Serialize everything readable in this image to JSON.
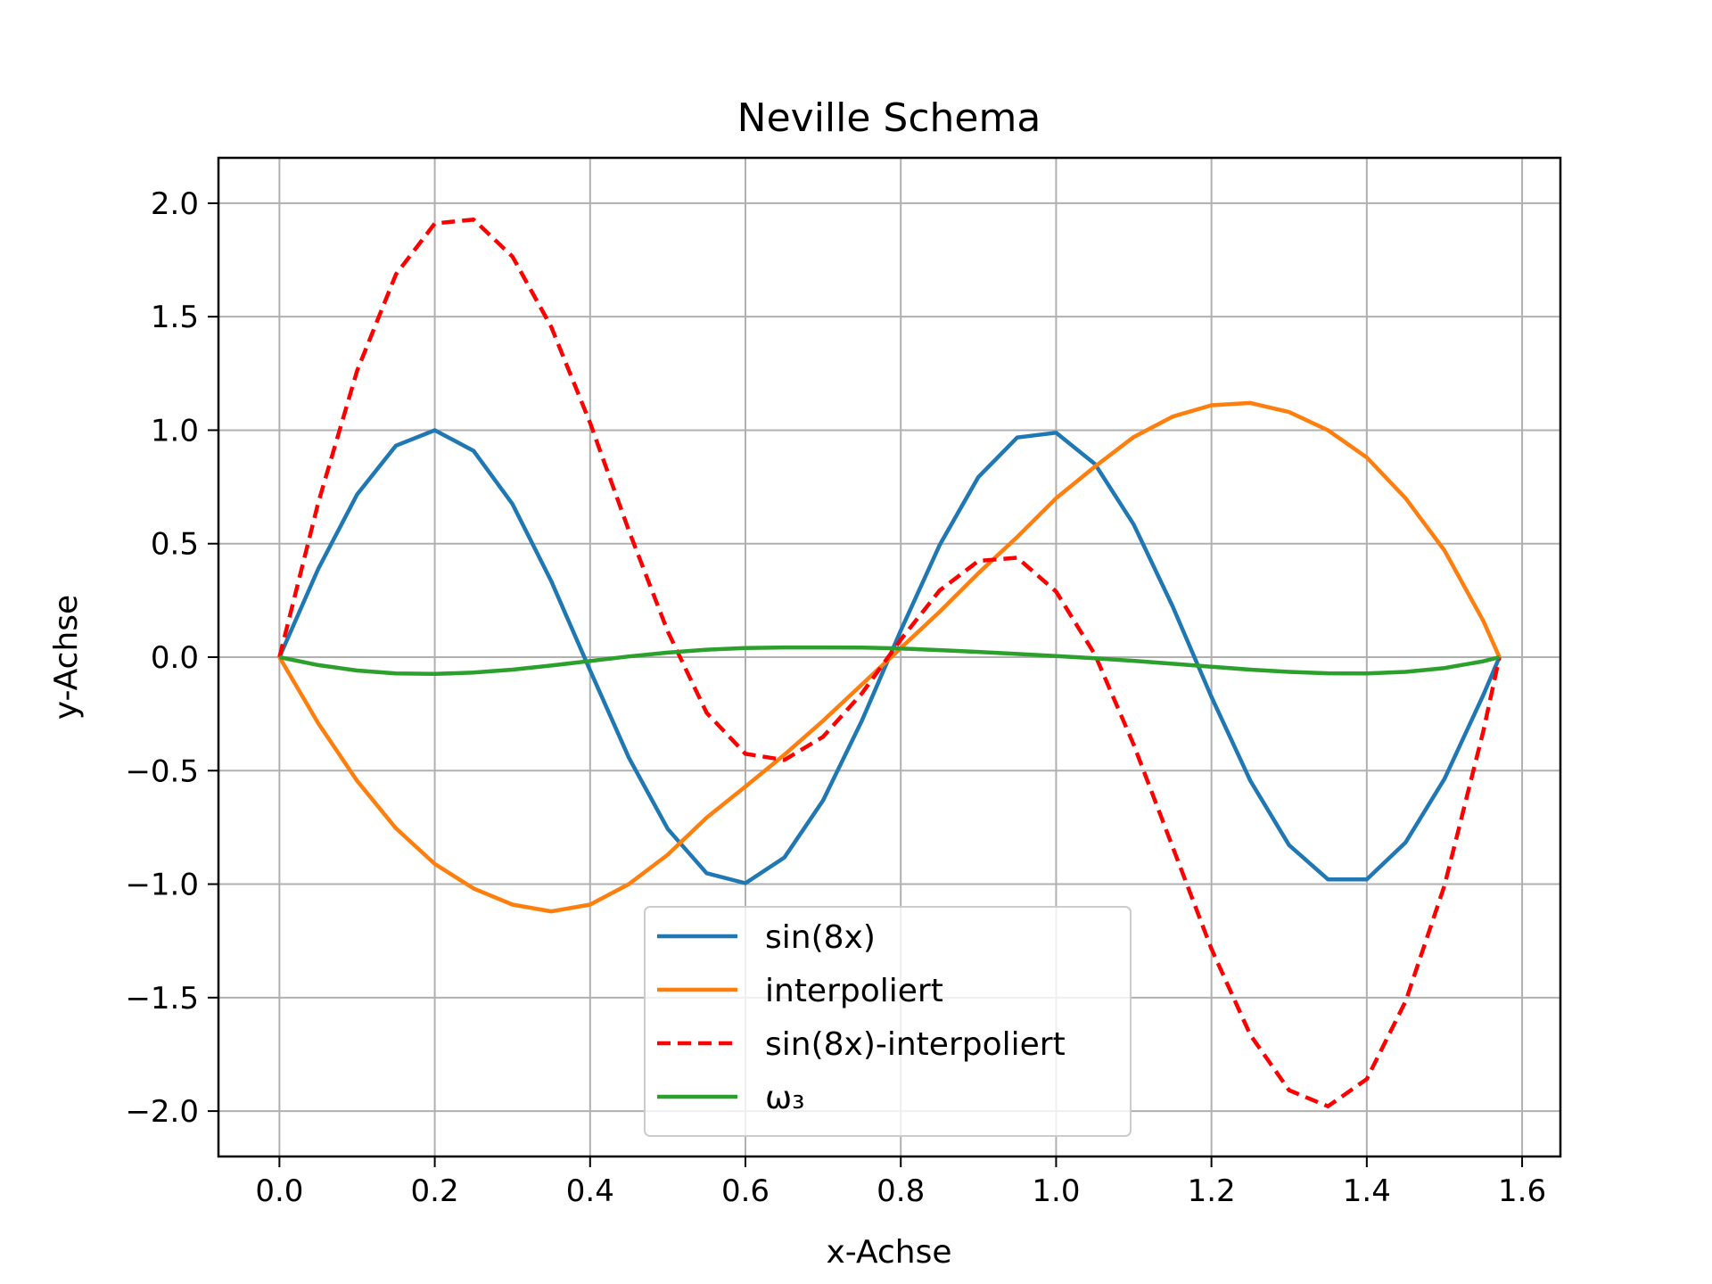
{
  "chart_data": {
    "type": "line",
    "title": "Neville Schema",
    "xlabel": "x-Achse",
    "ylabel": "y-Achse",
    "xlim": [
      -0.0785,
      1.6493
    ],
    "ylim": [
      -2.2,
      2.2
    ],
    "grid": true,
    "legend_position": "lower-center",
    "x_ticks": [
      "0.0",
      "0.2",
      "0.4",
      "0.6",
      "0.8",
      "1.0",
      "1.2",
      "1.4",
      "1.6"
    ],
    "x_tick_values": [
      0.0,
      0.2,
      0.4,
      0.6,
      0.8,
      1.0,
      1.2,
      1.4,
      1.6
    ],
    "y_ticks": [
      "2.0",
      "1.5",
      "1.0",
      "0.5",
      "0.0",
      "−0.5",
      "−1.0",
      "−1.5",
      "−2.0"
    ],
    "y_tick_values": [
      2.0,
      1.5,
      1.0,
      0.5,
      0.0,
      -0.5,
      -1.0,
      -1.5,
      -2.0
    ],
    "x": [
      0.0,
      0.05,
      0.1,
      0.15,
      0.2,
      0.25,
      0.3,
      0.35,
      0.4,
      0.45,
      0.5,
      0.55,
      0.6,
      0.65,
      0.7,
      0.75,
      0.8,
      0.85,
      0.9,
      0.95,
      1.0,
      1.05,
      1.1,
      1.15,
      1.2,
      1.25,
      1.3,
      1.35,
      1.4,
      1.45,
      1.5,
      1.55,
      1.5708
    ],
    "series": [
      {
        "name": "sin(8x)",
        "color": "#1f77b4",
        "dash": "solid",
        "values": [
          0.0,
          0.389,
          0.717,
          0.932,
          1.0,
          0.909,
          0.675,
          0.335,
          -0.058,
          -0.443,
          -0.757,
          -0.952,
          -0.996,
          -0.883,
          -0.631,
          -0.279,
          0.117,
          0.494,
          0.794,
          0.968,
          0.989,
          0.851,
          0.584,
          0.224,
          -0.175,
          -0.544,
          -0.828,
          -0.979,
          -0.979,
          -0.816,
          -0.536,
          -0.167,
          0.0
        ]
      },
      {
        "name": "interpoliert",
        "color": "#ff7f0e",
        "dash": "solid",
        "values": [
          0.0,
          -0.291,
          -0.545,
          -0.754,
          -0.911,
          -1.019,
          -1.09,
          -1.12,
          -1.09,
          -1.0,
          -0.87,
          -0.707,
          -0.57,
          -0.43,
          -0.28,
          -0.12,
          0.04,
          0.2,
          0.37,
          0.53,
          0.7,
          0.84,
          0.97,
          1.06,
          1.11,
          1.12,
          1.08,
          1.0,
          0.88,
          0.7,
          0.47,
          0.16,
          0.0
        ]
      },
      {
        "name": "sin(8x)-interpoliert",
        "color": "#ff0000",
        "dash": "dashed",
        "values": [
          0.0,
          0.68,
          1.262,
          1.686,
          1.911,
          1.928,
          1.765,
          1.455,
          1.032,
          0.557,
          0.113,
          -0.245,
          -0.426,
          -0.453,
          -0.351,
          -0.159,
          0.077,
          0.294,
          0.424,
          0.438,
          0.289,
          0.011,
          -0.386,
          -0.836,
          -1.285,
          -1.664,
          -1.908,
          -1.979,
          -1.859,
          -1.516,
          -1.006,
          -0.327,
          0.0
        ]
      },
      {
        "name": "ω₃",
        "color": "#2ca02c",
        "dash": "solid",
        "values": [
          0.0,
          -0.035,
          -0.059,
          -0.072,
          -0.074,
          -0.068,
          -0.055,
          -0.037,
          -0.017,
          0.003,
          0.02,
          0.033,
          0.04,
          0.043,
          0.043,
          0.042,
          0.038,
          0.031,
          0.023,
          0.014,
          0.005,
          -0.005,
          -0.016,
          -0.029,
          -0.042,
          -0.055,
          -0.065,
          -0.071,
          -0.072,
          -0.065,
          -0.048,
          -0.018,
          0.0
        ]
      }
    ]
  }
}
